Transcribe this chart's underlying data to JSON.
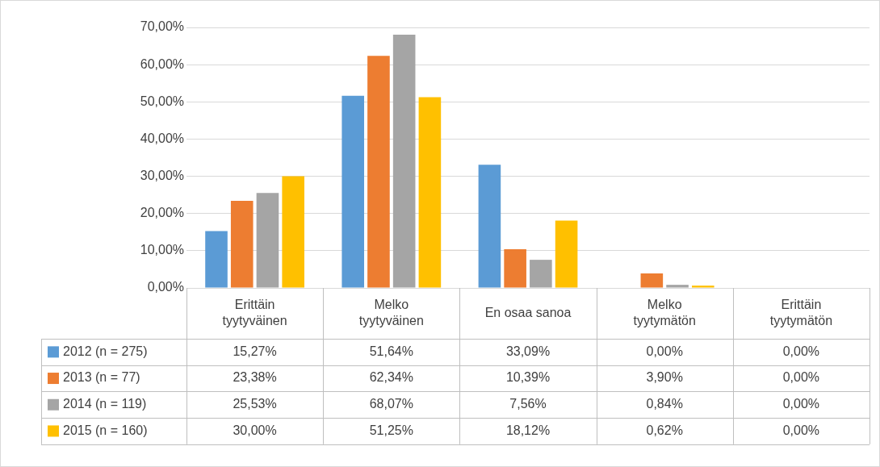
{
  "chart_data": {
    "type": "bar",
    "categories": [
      "Erittäin tyytyväinen",
      "Melko tyytyväinen",
      "En osaa sanoa",
      "Melko tyytymätön",
      "Erittäin tyytymätön"
    ],
    "series": [
      {
        "name": "2012 (n = 275)",
        "color": "#5b9bd5",
        "values": [
          15.27,
          51.64,
          33.09,
          0,
          0
        ],
        "value_labels": [
          "15,27%",
          "51,64%",
          "33,09%",
          "0,00%",
          "0,00%"
        ]
      },
      {
        "name": "2013 (n = 77)",
        "color": "#ed7d31",
        "values": [
          23.38,
          62.34,
          10.39,
          3.9,
          0
        ],
        "value_labels": [
          "23,38%",
          "62,34%",
          "10,39%",
          "3,90%",
          "0,00%"
        ]
      },
      {
        "name": "2014 (n = 119)",
        "color": "#a5a5a5",
        "values": [
          25.53,
          68.07,
          7.56,
          0.84,
          0
        ],
        "value_labels": [
          "25,53%",
          "68,07%",
          "7,56%",
          "0,84%",
          "0,00%"
        ]
      },
      {
        "name": "2015 (n = 160)",
        "color": "#ffc000",
        "values": [
          30,
          51.25,
          18.12,
          0.62,
          0
        ],
        "value_labels": [
          "30,00%",
          "51,25%",
          "18,12%",
          "0,62%",
          "0,00%"
        ]
      }
    ],
    "ylim": [
      0,
      70
    ],
    "yticks": [
      {
        "value": 0,
        "label": "0,00%"
      },
      {
        "value": 10,
        "label": "10,00%"
      },
      {
        "value": 20,
        "label": "20,00%"
      },
      {
        "value": 30,
        "label": "30,00%"
      },
      {
        "value": 40,
        "label": "40,00%"
      },
      {
        "value": 50,
        "label": "50,00%"
      },
      {
        "value": 60,
        "label": "60,00%"
      },
      {
        "value": 70,
        "label": "70,00%"
      }
    ],
    "grid": "y",
    "legend": "bottom left"
  }
}
